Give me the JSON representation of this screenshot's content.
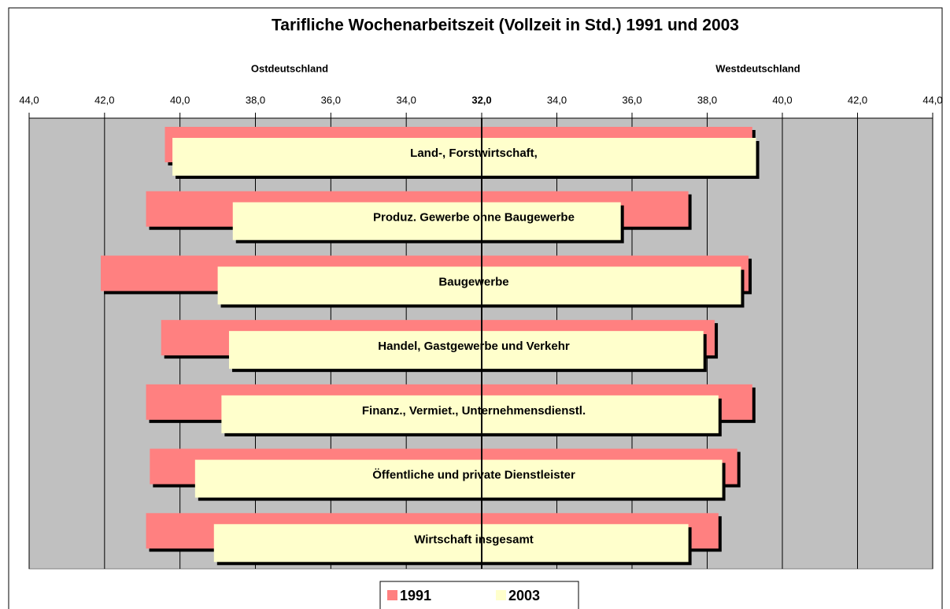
{
  "chart_data": {
    "type": "butterfly_bar",
    "title": "Tarifliche Wochenarbeitszeit (Vollzeit in Std.) 1991 und 2003",
    "categories": [
      "Land-, Forstwirtschaft,",
      "Produz. Gewerbe ohne Baugewerbe",
      "Baugewerbe",
      "Handel, Gastgewerbe und Verkehr",
      "Finanz., Vermiet., Unternehmensdienstl.",
      "Öffentliche und private Dienstleister",
      "Wirtschaft insgesamt"
    ],
    "left_axis": {
      "label": "Ostdeutschland",
      "xlim": [
        44,
        32
      ],
      "xticks": [
        {
          "value": 44,
          "label": "44,0"
        },
        {
          "value": 42,
          "label": "42,0"
        },
        {
          "value": 40,
          "label": "40,0"
        },
        {
          "value": 38,
          "label": "38,0"
        },
        {
          "value": 36,
          "label": "36,0"
        },
        {
          "value": 34,
          "label": "34,0"
        },
        {
          "value": 32,
          "label": "32,0"
        }
      ]
    },
    "right_axis": {
      "label": "Westdeutschland",
      "xlim": [
        32,
        44
      ],
      "xticks": [
        {
          "value": 34,
          "label": "34,0"
        },
        {
          "value": 36,
          "label": "36,0"
        },
        {
          "value": 38,
          "label": "38,0"
        },
        {
          "value": 40,
          "label": "40,0"
        },
        {
          "value": 42,
          "label": "42,0"
        },
        {
          "value": 44,
          "label": "44,0"
        }
      ]
    },
    "series": [
      {
        "name": "1991",
        "color": "#ff8080",
        "east": [
          40.4,
          40.9,
          42.1,
          40.5,
          40.9,
          40.8,
          40.9
        ],
        "west": [
          39.2,
          37.5,
          39.1,
          38.2,
          39.2,
          38.8,
          38.3
        ]
      },
      {
        "name": "2003",
        "color": "#ffffcc",
        "east": [
          40.2,
          38.6,
          39.0,
          38.7,
          38.9,
          39.6,
          39.1
        ],
        "west": [
          39.3,
          35.7,
          38.9,
          37.9,
          38.3,
          38.4,
          37.5
        ]
      }
    ],
    "grid": true,
    "legend": "bottom"
  }
}
